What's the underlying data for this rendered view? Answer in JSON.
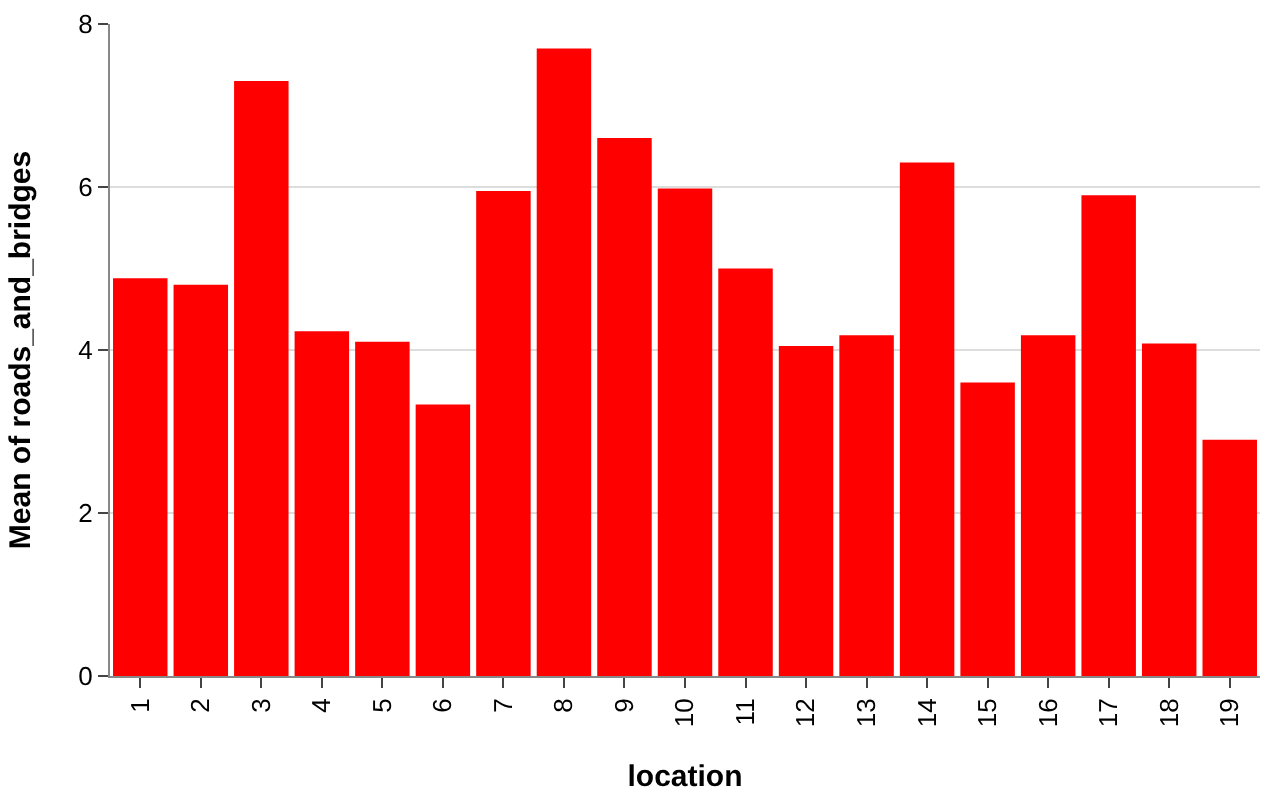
{
  "chart_data": {
    "type": "bar",
    "xlabel": "location",
    "ylabel": "Mean of roads_and_bridges",
    "categories": [
      "1",
      "2",
      "3",
      "4",
      "5",
      "6",
      "7",
      "8",
      "9",
      "10",
      "11",
      "12",
      "13",
      "14",
      "15",
      "16",
      "17",
      "18",
      "19"
    ],
    "values": [
      4.88,
      4.8,
      7.3,
      4.23,
      4.1,
      3.33,
      5.95,
      7.7,
      6.6,
      5.98,
      5.0,
      4.05,
      4.18,
      6.3,
      3.6,
      4.18,
      5.9,
      4.08,
      2.9
    ],
    "color": "#ff0000",
    "ylim": [
      0,
      8
    ],
    "yticks": [
      0,
      2,
      4,
      6,
      8
    ],
    "grid": "y"
  }
}
